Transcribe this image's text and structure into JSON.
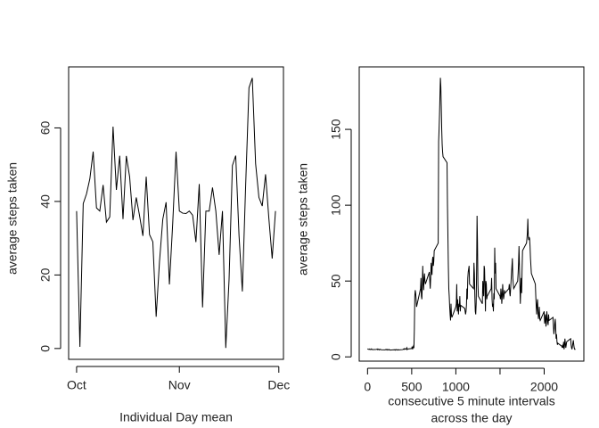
{
  "chart_data": [
    {
      "type": "line",
      "xlabel": "Individual Day mean",
      "ylabel": "average steps taken",
      "color": "#000000",
      "x": [
        0,
        1,
        2,
        3,
        4,
        5,
        6,
        7,
        8,
        9,
        10,
        11,
        12,
        13,
        14,
        15,
        16,
        17,
        18,
        19,
        20,
        21,
        22,
        23,
        24,
        25,
        26,
        27,
        28,
        29,
        30,
        31,
        32,
        33,
        34,
        35,
        36,
        37,
        38,
        39,
        40,
        41,
        42,
        43,
        44,
        45,
        46,
        47,
        48,
        49,
        50,
        51,
        52,
        53,
        54,
        55,
        56,
        57,
        58,
        59,
        60
      ],
      "values": [
        37.38,
        0.44,
        39.42,
        42.07,
        46.16,
        53.54,
        38.25,
        37.38,
        44.48,
        34.38,
        35.78,
        60.35,
        43.15,
        52.42,
        35.2,
        52.38,
        46.71,
        34.92,
        41.07,
        36.09,
        30.63,
        46.74,
        30.97,
        29.01,
        8.65,
        23.53,
        35.14,
        39.78,
        17.42,
        34.09,
        53.52,
        37.38,
        36.81,
        36.7,
        37.38,
        36.25,
        28.94,
        44.73,
        11.18,
        37.38,
        37.38,
        43.78,
        37.38,
        25.47,
        37.38,
        0.14,
        18.89,
        49.79,
        52.47,
        30.7,
        15.53,
        44.4,
        70.93,
        73.59,
        50.27,
        41.09,
        38.76,
        47.38,
        35.36,
        24.47,
        37.38
      ],
      "xlim": [
        -2.4,
        62.4
      ],
      "xticks": [
        {
          "value": 0,
          "label": "Oct"
        },
        {
          "value": 31,
          "label": "Nov"
        },
        {
          "value": 61,
          "label": "Dec"
        }
      ],
      "ylim": [
        -2.95,
        76.6
      ],
      "yticks": [
        0,
        20,
        40,
        60
      ]
    },
    {
      "type": "line",
      "xlabel": [
        "consecutive 5 minute intervals",
        "across the day"
      ],
      "ylabel": "average steps taken",
      "color": "#000000",
      "x": [
        0,
        5,
        10,
        15,
        20,
        25,
        30,
        35,
        40,
        45,
        50,
        55,
        100,
        105,
        110,
        115,
        120,
        125,
        130,
        135,
        140,
        145,
        150,
        155,
        200,
        205,
        210,
        215,
        220,
        225,
        230,
        235,
        240,
        245,
        250,
        255,
        300,
        305,
        310,
        315,
        320,
        325,
        330,
        335,
        340,
        345,
        350,
        355,
        400,
        405,
        410,
        415,
        420,
        425,
        430,
        435,
        440,
        445,
        450,
        455,
        500,
        505,
        510,
        515,
        520,
        525,
        530,
        535,
        540,
        545,
        550,
        555,
        600,
        605,
        610,
        615,
        620,
        625,
        630,
        635,
        640,
        645,
        650,
        655,
        700,
        705,
        710,
        715,
        720,
        725,
        730,
        735,
        740,
        745,
        750,
        755,
        800,
        805,
        810,
        815,
        820,
        825,
        830,
        835,
        840,
        845,
        850,
        855,
        900,
        905,
        910,
        915,
        920,
        925,
        930,
        935,
        940,
        945,
        950,
        955,
        1000,
        1005,
        1010,
        1015,
        1020,
        1025,
        1030,
        1035,
        1040,
        1045,
        1050,
        1055,
        1100,
        1105,
        1110,
        1115,
        1120,
        1125,
        1130,
        1135,
        1140,
        1145,
        1150,
        1155,
        1200,
        1205,
        1210,
        1215,
        1220,
        1225,
        1230,
        1235,
        1240,
        1245,
        1250,
        1255,
        1300,
        1305,
        1310,
        1315,
        1320,
        1325,
        1330,
        1335,
        1340,
        1345,
        1350,
        1355,
        1400,
        1405,
        1410,
        1415,
        1420,
        1425,
        1430,
        1435,
        1440,
        1445,
        1450,
        1455,
        1500,
        1505,
        1510,
        1515,
        1520,
        1525,
        1530,
        1535,
        1540,
        1545,
        1550,
        1555,
        1600,
        1605,
        1610,
        1615,
        1620,
        1625,
        1630,
        1635,
        1640,
        1645,
        1650,
        1655,
        1700,
        1705,
        1710,
        1715,
        1720,
        1725,
        1730,
        1735,
        1740,
        1745,
        1750,
        1755,
        1800,
        1805,
        1810,
        1815,
        1820,
        1825,
        1830,
        1835,
        1840,
        1845,
        1850,
        1855,
        1900,
        1905,
        1910,
        1915,
        1920,
        1925,
        1930,
        1935,
        1940,
        1945,
        1950,
        1955,
        2000,
        2005,
        2010,
        2015,
        2020,
        2025,
        2030,
        2035,
        2040,
        2045,
        2050,
        2055,
        2100,
        2105,
        2110,
        2115,
        2120,
        2125,
        2130,
        2135,
        2140,
        2145,
        2150,
        2155,
        2200,
        2205,
        2210,
        2215,
        2220,
        2225,
        2230,
        2235,
        2240,
        2245,
        2250,
        2255,
        2300,
        2305,
        2310,
        2315,
        2320,
        2325,
        2330,
        2335,
        2340,
        2345,
        2350,
        2355
      ],
      "values": [
        5.4,
        5.1,
        5.0,
        5.0,
        5.2,
        4.9,
        5.0,
        4.8,
        4.9,
        5.3,
        5.0,
        4.8,
        4.9,
        5.0,
        5.2,
        4.7,
        4.8,
        5.1,
        4.9,
        4.6,
        4.9,
        5.0,
        4.8,
        4.7,
        4.6,
        4.8,
        5.0,
        4.7,
        4.5,
        4.9,
        4.8,
        4.6,
        4.7,
        4.9,
        4.6,
        4.5,
        4.7,
        4.6,
        4.8,
        4.4,
        4.6,
        4.9,
        4.7,
        4.5,
        4.6,
        4.8,
        4.5,
        4.6,
        4.8,
        5.2,
        5.0,
        4.9,
        5.5,
        5.3,
        5.1,
        5.0,
        5.4,
        6.0,
        4.8,
        5.2,
        5.5,
        6.8,
        5.0,
        6.2,
        7.1,
        5.8,
        18.0,
        40.0,
        44.0,
        42.0,
        38.0,
        33.0,
        45,
        52,
        40,
        38,
        47,
        60,
        48,
        44,
        52,
        55,
        50,
        48,
        56,
        50,
        45,
        52,
        62,
        58,
        54,
        64,
        66,
        60,
        63,
        70,
        75,
        142,
        150,
        160,
        172,
        184,
        178,
        165,
        150,
        140,
        135,
        132,
        128,
        100,
        80,
        60,
        45,
        40,
        33,
        28,
        24,
        35,
        28,
        26,
        33,
        35,
        48,
        30,
        38,
        32,
        28,
        35,
        33,
        40,
        30,
        34,
        32,
        30,
        28,
        30,
        34,
        45,
        38,
        52,
        56,
        58,
        60,
        48,
        45,
        62,
        55,
        40,
        30,
        28,
        35,
        58,
        93,
        75,
        48,
        40,
        35,
        50,
        45,
        40,
        60,
        58,
        45,
        30,
        50,
        48,
        38,
        40,
        45,
        52,
        38,
        33,
        35,
        30,
        42,
        38,
        72,
        55,
        62,
        45,
        40,
        38,
        45,
        42,
        35,
        40,
        48,
        42,
        38,
        40,
        44,
        42,
        45,
        48,
        42,
        40,
        45,
        50,
        55,
        60,
        65,
        52,
        48,
        45,
        50,
        55,
        62,
        73,
        60,
        48,
        35,
        45,
        52,
        42,
        58,
        70,
        75,
        78,
        82,
        91,
        80,
        77,
        79,
        78,
        73,
        65,
        60,
        55,
        48,
        40,
        33,
        28,
        35,
        38,
        30,
        25,
        28,
        33,
        25,
        24,
        30,
        22,
        25,
        28,
        20,
        22,
        30,
        26,
        23,
        21,
        28,
        24,
        26,
        20,
        15,
        18,
        22,
        25,
        20,
        12,
        15,
        10,
        8,
        9,
        7,
        6,
        8,
        6,
        10,
        5,
        7,
        12,
        9,
        6,
        8,
        10,
        12,
        8,
        6,
        5,
        7,
        9,
        11,
        8,
        6,
        5,
        5,
        5
      ],
      "xlim": [
        -94.2,
        2449.2
      ],
      "xticks": [
        0,
        500,
        1000,
        {
          "value": 1500,
          "label": null
        },
        2000
      ],
      "ylim": [
        -2.8,
        191.2
      ],
      "yticks": [
        0,
        50,
        100,
        150
      ]
    }
  ]
}
